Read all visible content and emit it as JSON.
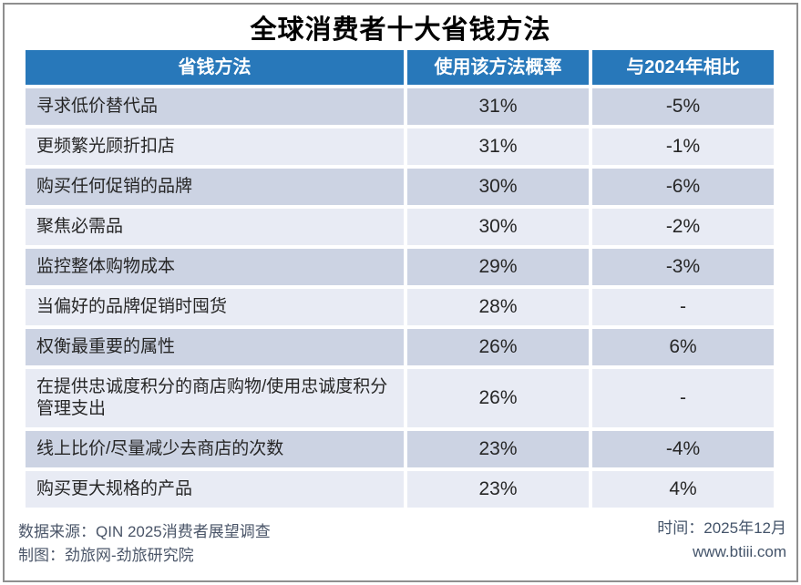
{
  "title": "全球消费者十大省钱方法",
  "table": {
    "headers": [
      "省钱方法",
      "使用该方法概率",
      "与2024年相比"
    ],
    "rows": [
      {
        "method": "寻求低价替代品",
        "probability": "31%",
        "vs2024": "-5%"
      },
      {
        "method": "更频繁光顾折扣店",
        "probability": "31%",
        "vs2024": "-1%"
      },
      {
        "method": "购买任何促销的品牌",
        "probability": "30%",
        "vs2024": "-6%"
      },
      {
        "method": "聚焦必需品",
        "probability": "30%",
        "vs2024": "-2%"
      },
      {
        "method": "监控整体购物成本",
        "probability": "29%",
        "vs2024": "-3%"
      },
      {
        "method": "当偏好的品牌促销时囤货",
        "probability": "28%",
        "vs2024": "-"
      },
      {
        "method": "权衡最重要的属性",
        "probability": "26%",
        "vs2024": "6%"
      },
      {
        "method": "在提供忠诚度积分的商店购物/使用忠诚度积分管理支出",
        "probability": "26%",
        "vs2024": "-"
      },
      {
        "method": "线上比价/尽量减少去商店的次数",
        "probability": "23%",
        "vs2024": "-4%"
      },
      {
        "method": "购买更大规格的产品",
        "probability": "23%",
        "vs2024": "4%"
      }
    ]
  },
  "footer": {
    "source_line": "数据来源：QIN 2025消费者展望调查",
    "credit_line": "制图：劲旅网-劲旅研究院",
    "time_line": "时间：2025年12月",
    "website": "www.btiii.com"
  },
  "colors": {
    "header_bg": "#2878BA",
    "header_text": "#FFFFFF",
    "row_odd_bg": "#CCD3E3",
    "row_even_bg": "#E8EBF4",
    "cell_text": "#262626",
    "footer_text": "#44546A",
    "frame_border": "#8F8F8F"
  },
  "chart_data": {
    "type": "table",
    "title": "全球消费者十大省钱方法",
    "columns": [
      "省钱方法",
      "使用该方法概率",
      "与2024年相比"
    ],
    "rows": [
      [
        "寻求低价替代品",
        "31%",
        "-5%"
      ],
      [
        "更频繁光顾折扣店",
        "31%",
        "-1%"
      ],
      [
        "购买任何促销的品牌",
        "30%",
        "-6%"
      ],
      [
        "聚焦必需品",
        "30%",
        "-2%"
      ],
      [
        "监控整体购物成本",
        "29%",
        "-3%"
      ],
      [
        "当偏好的品牌促销时囤货",
        "28%",
        "-"
      ],
      [
        "权衡最重要的属性",
        "26%",
        "6%"
      ],
      [
        "在提供忠诚度积分的商店购物/使用忠诚度积分管理支出",
        "26%",
        "-"
      ],
      [
        "线上比价/尽量减少去商店的次数",
        "23%",
        "-4%"
      ],
      [
        "购买更大规格的产品",
        "23%",
        "4%"
      ]
    ],
    "probability_values_pct": [
      31,
      31,
      30,
      30,
      29,
      28,
      26,
      26,
      23,
      23
    ],
    "vs2024_change_pct": [
      -5,
      -1,
      -6,
      -2,
      -3,
      null,
      6,
      null,
      -4,
      4
    ]
  }
}
